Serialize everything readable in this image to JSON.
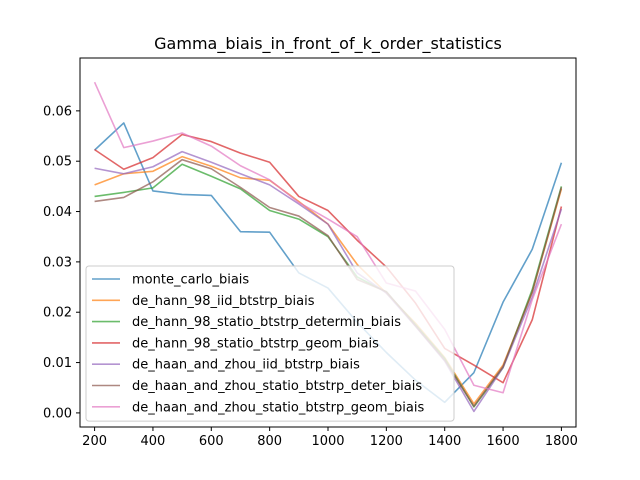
{
  "chart_data": {
    "type": "line",
    "title": "Gamma_biais_in_front_of_k_order_statistics",
    "xlabel": "",
    "ylabel": "",
    "xlim": [
      150,
      1850
    ],
    "ylim": [
      -0.0028,
      0.0705
    ],
    "xticks": [
      200,
      400,
      600,
      800,
      1000,
      1200,
      1400,
      1600,
      1800
    ],
    "xtick_labels": [
      "200",
      "400",
      "600",
      "800",
      "1000",
      "1200",
      "1400",
      "1600",
      "1800"
    ],
    "yticks": [
      0.0,
      0.01,
      0.02,
      0.03,
      0.04,
      0.05,
      0.06
    ],
    "ytick_labels": [
      "0.00",
      "0.01",
      "0.02",
      "0.03",
      "0.04",
      "0.05",
      "0.06"
    ],
    "grid": false,
    "legend_position": "lower-left",
    "x": [
      200,
      300,
      400,
      500,
      600,
      700,
      800,
      900,
      1000,
      1100,
      1200,
      1300,
      1400,
      1500,
      1600,
      1700,
      1800
    ],
    "series": [
      {
        "name": "monte_carlo_biais",
        "color": "#1f77b4",
        "values": [
          0.0522,
          0.0576,
          0.0441,
          0.0434,
          0.0432,
          0.036,
          0.0359,
          0.0278,
          0.0248,
          0.018,
          0.012,
          0.0065,
          0.0021,
          0.008,
          0.022,
          0.0325,
          0.0497
        ]
      },
      {
        "name": "de_hann_98_iid_btstrp_biais",
        "color": "#ff7f0e",
        "values": [
          0.0453,
          0.0475,
          0.048,
          0.0509,
          0.049,
          0.0467,
          0.0462,
          0.042,
          0.0375,
          0.0295,
          0.0238,
          0.0178,
          0.011,
          0.0018,
          0.0095,
          0.024,
          0.0445
        ]
      },
      {
        "name": "de_hann_98_statio_btstrp_determin_biais",
        "color": "#2ca02c",
        "values": [
          0.043,
          0.0438,
          0.0447,
          0.0494,
          0.047,
          0.0445,
          0.0402,
          0.0385,
          0.035,
          0.027,
          0.024,
          0.0175,
          0.0108,
          0.0012,
          0.009,
          0.0245,
          0.045
        ]
      },
      {
        "name": "de_hann_98_statio_btstrp_geom_biais",
        "color": "#d62728",
        "values": [
          0.0523,
          0.0484,
          0.0507,
          0.0553,
          0.0539,
          0.0516,
          0.0498,
          0.043,
          0.0402,
          0.0343,
          0.029,
          0.0218,
          0.0128,
          0.0095,
          0.006,
          0.0185,
          0.041
        ]
      },
      {
        "name": "de_haan_and_zhou_iid_btstrp_biais",
        "color": "#9467bd",
        "values": [
          0.0486,
          0.0475,
          0.0489,
          0.0519,
          0.0498,
          0.0475,
          0.0453,
          0.0415,
          0.0375,
          0.0278,
          0.0238,
          0.0172,
          0.0103,
          0.0003,
          0.009,
          0.023,
          0.0405
        ]
      },
      {
        "name": "de_haan_and_zhou_statio_btstrp_deter_biais",
        "color": "#8c564b",
        "values": [
          0.042,
          0.0428,
          0.0459,
          0.0503,
          0.0485,
          0.0448,
          0.0408,
          0.0391,
          0.0352,
          0.0265,
          0.0241,
          0.0173,
          0.0105,
          0.0013,
          0.0092,
          0.024,
          0.0448
        ]
      },
      {
        "name": "de_haan_and_zhou_statio_btstrp_geom_biais",
        "color": "#e377c2",
        "values": [
          0.0657,
          0.0527,
          0.054,
          0.0556,
          0.053,
          0.0491,
          0.0463,
          0.0418,
          0.0385,
          0.035,
          0.0258,
          0.0242,
          0.0166,
          0.0055,
          0.004,
          0.0225,
          0.0375
        ]
      }
    ]
  }
}
